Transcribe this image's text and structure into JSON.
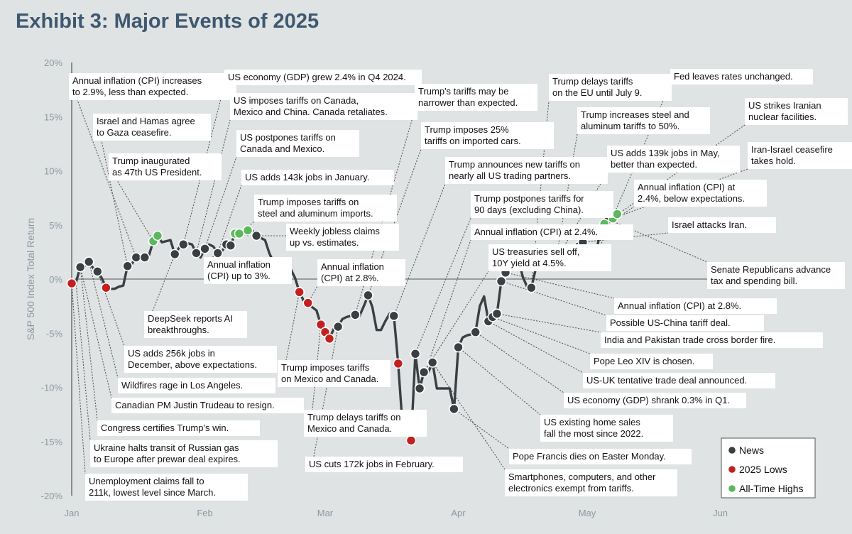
{
  "title": "Exhibit 3: Major Events of 2025",
  "colors": {
    "news": "#3a3f44",
    "lows": "#c42020",
    "highs": "#5cb85c",
    "line": "#3a3f44",
    "background": "#dfe3e3"
  },
  "chart_data": {
    "type": "line",
    "ylabel": "S&P 500 Index Total Return",
    "ylim": [
      -20,
      20
    ],
    "yticks": [
      20,
      15,
      10,
      5,
      0,
      -5,
      -10,
      -15,
      -20
    ],
    "ytick_labels": [
      "20%",
      "15%",
      "10%",
      "5%",
      "0%",
      "-5%",
      "-10%",
      "-15%",
      "-20%"
    ],
    "xlim": [
      0,
      180
    ],
    "xticks": [
      {
        "label": "Jan",
        "x": 0
      },
      {
        "label": "Feb",
        "x": 31
      },
      {
        "label": "Mar",
        "x": 59
      },
      {
        "label": "Apr",
        "x": 90
      },
      {
        "label": "May",
        "x": 120
      },
      {
        "label": "Jun",
        "x": 151
      }
    ],
    "series": [
      {
        "values": [
          [
            0,
            -0.4
          ],
          [
            1,
            -0.3
          ],
          [
            2,
            1.1
          ],
          [
            3,
            1.2
          ],
          [
            4,
            1.6
          ],
          [
            5,
            1.0
          ],
          [
            6,
            0.7
          ],
          [
            7,
            0.1
          ],
          [
            8,
            -0.8
          ],
          [
            9,
            -0.9
          ],
          [
            10,
            -0.9
          ],
          [
            11,
            -0.7
          ],
          [
            12,
            -0.6
          ],
          [
            13,
            1.2
          ],
          [
            14,
            1.4
          ],
          [
            15,
            2.0
          ],
          [
            16,
            2.1
          ],
          [
            17,
            2.0
          ],
          [
            18,
            2.2
          ],
          [
            19,
            3.5
          ],
          [
            20,
            4.0
          ],
          [
            21,
            3.4
          ],
          [
            22,
            3.5
          ],
          [
            23,
            3.6
          ],
          [
            24,
            2.3
          ],
          [
            25,
            2.9
          ],
          [
            26,
            3.2
          ],
          [
            27,
            3.3
          ],
          [
            28,
            3.2
          ],
          [
            29,
            2.4
          ],
          [
            30,
            2.0
          ],
          [
            31,
            2.8
          ],
          [
            32,
            3.2
          ],
          [
            33,
            3.0
          ],
          [
            34,
            2.4
          ],
          [
            35,
            2.6
          ],
          [
            36,
            3.2
          ],
          [
            37,
            3.1
          ],
          [
            38,
            4.2
          ],
          [
            39,
            4.2
          ],
          [
            40,
            4.3
          ],
          [
            41,
            4.1
          ],
          [
            42,
            4.5
          ],
          [
            43,
            4.0
          ],
          [
            44,
            3.8
          ],
          [
            45,
            3.6
          ],
          [
            46,
            2.4
          ],
          [
            47,
            1.5
          ],
          [
            48,
            1.5
          ],
          [
            49,
            0.6
          ],
          [
            50,
            1.5
          ],
          [
            51,
            0.9
          ],
          [
            52,
            0.1
          ],
          [
            53,
            -1.2
          ],
          [
            54,
            -2.0
          ],
          [
            55,
            -2.2
          ],
          [
            56,
            -2.6
          ],
          [
            57,
            -2.9
          ],
          [
            58,
            -4.2
          ],
          [
            59,
            -4.9
          ],
          [
            60,
            -5.5
          ],
          [
            61,
            -4.6
          ],
          [
            62,
            -4.4
          ],
          [
            63,
            -3.7
          ],
          [
            64,
            -3.5
          ],
          [
            65,
            -3.4
          ],
          [
            66,
            -3.3
          ],
          [
            67,
            -3.4
          ],
          [
            68,
            -2.5
          ],
          [
            69,
            -1.5
          ],
          [
            70,
            -2.6
          ],
          [
            71,
            -4.7
          ],
          [
            72,
            -4.7
          ],
          [
            73,
            -3.9
          ],
          [
            74,
            -3.2
          ],
          [
            75,
            -3.4
          ],
          [
            76,
            -7.8
          ],
          [
            77,
            -13.4
          ],
          [
            78,
            -13.6
          ],
          [
            79,
            -14.9
          ],
          [
            80,
            -6.9
          ],
          [
            81,
            -10.1
          ],
          [
            82,
            -8.6
          ],
          [
            83,
            -8.6
          ],
          [
            84,
            -7.7
          ],
          [
            85,
            -10.1
          ],
          [
            86,
            -10.1
          ],
          [
            87,
            -10.1
          ],
          [
            88,
            -10.1
          ],
          [
            89,
            -12.0
          ],
          [
            90,
            -6.3
          ],
          [
            91,
            -5.4
          ],
          [
            92,
            -5.2
          ],
          [
            93,
            -5.1
          ],
          [
            94,
            -4.9
          ],
          [
            95,
            -2.5
          ],
          [
            96,
            -1.6
          ],
          [
            97,
            -3.9
          ],
          [
            98,
            -3.5
          ],
          [
            99,
            -3.2
          ],
          [
            100,
            -0.2
          ],
          [
            101,
            0.6
          ],
          [
            102,
            1.8
          ],
          [
            103,
            1.8
          ],
          [
            104,
            1.8
          ],
          [
            105,
            0.2
          ],
          [
            106,
            -0.7
          ],
          [
            107,
            -0.8
          ],
          [
            108,
            0.9
          ],
          [
            109,
            1.0
          ],
          [
            110,
            1.0
          ],
          [
            111,
            1.0
          ],
          [
            112,
            1.7
          ],
          [
            113,
            2.4
          ],
          [
            114,
            2.6
          ],
          [
            115,
            2.6
          ],
          [
            116,
            2.7
          ],
          [
            117,
            2.9
          ],
          [
            118,
            3.0
          ],
          [
            119,
            3.4
          ],
          [
            120,
            2.3
          ],
          [
            121,
            2.5
          ],
          [
            122,
            2.1
          ],
          [
            123,
            4.4
          ],
          [
            124,
            5.1
          ],
          [
            125,
            5.5
          ],
          [
            126,
            5.6
          ],
          [
            127,
            6.0
          ]
        ]
      }
    ],
    "markers": {
      "news": [
        [
          2,
          1.1
        ],
        [
          4,
          1.6
        ],
        [
          6,
          0.7
        ],
        [
          13,
          1.2
        ],
        [
          15,
          2.0
        ],
        [
          17,
          2.0
        ],
        [
          24,
          2.3
        ],
        [
          26,
          3.2
        ],
        [
          29,
          2.4
        ],
        [
          31,
          2.8
        ],
        [
          34,
          2.4
        ],
        [
          36,
          3.2
        ],
        [
          37,
          3.1
        ],
        [
          43,
          4.0
        ],
        [
          50,
          1.5
        ],
        [
          62,
          -4.4
        ],
        [
          66,
          -3.3
        ],
        [
          69,
          -1.5
        ],
        [
          75,
          -3.4
        ],
        [
          80,
          -6.9
        ],
        [
          81,
          -10.1
        ],
        [
          82,
          -8.6
        ],
        [
          84,
          -7.7
        ],
        [
          89,
          -12.0
        ],
        [
          90,
          -6.3
        ],
        [
          94,
          -4.9
        ],
        [
          97,
          -3.9
        ],
        [
          98,
          -3.5
        ],
        [
          99,
          -3.2
        ],
        [
          100,
          -0.2
        ],
        [
          101,
          0.6
        ],
        [
          107,
          -0.8
        ],
        [
          113,
          2.4
        ],
        [
          114,
          2.6
        ],
        [
          116,
          2.7
        ],
        [
          118,
          3.0
        ],
        [
          119,
          3.4
        ],
        [
          121,
          2.5
        ],
        [
          122,
          2.1
        ],
        [
          123,
          4.4
        ],
        [
          125,
          5.5
        ]
      ],
      "lows": [
        [
          0,
          -0.4
        ],
        [
          8,
          -0.8
        ],
        [
          53,
          -1.2
        ],
        [
          55,
          -2.2
        ],
        [
          58,
          -4.2
        ],
        [
          59,
          -4.9
        ],
        [
          60,
          -5.5
        ],
        [
          76,
          -7.8
        ],
        [
          77,
          -13.4
        ],
        [
          78,
          -13.6
        ],
        [
          79,
          -14.9
        ]
      ],
      "highs": [
        [
          19,
          3.5
        ],
        [
          20,
          4.0
        ],
        [
          38,
          4.2
        ],
        [
          39,
          4.2
        ],
        [
          41,
          4.5
        ],
        [
          124,
          5.1
        ],
        [
          126,
          5.6
        ],
        [
          127,
          6.0
        ]
      ]
    },
    "annotations": [
      {
        "lines": [
          "Annual inflation (CPI) increases",
          "to 2.9%, less than expected."
        ],
        "x": 15,
        "y": 2.0
      },
      {
        "lines": [
          "Israel and Hamas agree",
          "to Gaza ceasefire."
        ],
        "x": 13,
        "y": 1.2
      },
      {
        "lines": [
          "Trump inaugurated",
          "as 47th US President."
        ],
        "x": 19,
        "y": 3.5
      },
      {
        "lines": [
          "US economy (GDP) grew 2.4% in Q4 2024."
        ],
        "x": 26,
        "y": 3.2
      },
      {
        "lines": [
          "US imposes tariffs on Canada,",
          "Mexico and China. Canada retaliates."
        ],
        "x": 29,
        "y": 2.4
      },
      {
        "lines": [
          "US postpones tariffs on",
          "Canada and Mexico."
        ],
        "x": 31,
        "y": 2.8
      },
      {
        "lines": [
          "US adds 143k jobs in January."
        ],
        "x": 34,
        "y": 2.4
      },
      {
        "lines": [
          "Trump imposes tariffs on",
          "steel and aluminum imports."
        ],
        "x": 36,
        "y": 3.2
      },
      {
        "lines": [
          "Weekly jobless claims",
          "up vs. estimates."
        ],
        "x": 43,
        "y": 4.0
      },
      {
        "lines": [
          "Annual inflation",
          "(CPI) up to 3%."
        ],
        "x": 37,
        "y": 3.1
      },
      {
        "lines": [
          "DeepSeek reports AI",
          "breakthroughs."
        ],
        "x": 24,
        "y": 2.3
      },
      {
        "lines": [
          "US adds 256k jobs in",
          "December, above expectations."
        ],
        "x": 6,
        "y": 0.7
      },
      {
        "lines": [
          "Wildfires rage in Los Angeles."
        ],
        "x": 4,
        "y": 1.6
      },
      {
        "lines": [
          "Canadian PM Justin Trudeau to resign."
        ],
        "x": 2,
        "y": 1.1
      },
      {
        "lines": [
          "Congress certifies Trump's win."
        ],
        "x": 2,
        "y": 1.1
      },
      {
        "lines": [
          "Ukraine halts transit of Russian gas",
          "to Europe after prewar deal expires."
        ],
        "x": 1,
        "y": -0.3
      },
      {
        "lines": [
          "Unemployment claims fall to",
          "211k, lowest level since March."
        ],
        "x": 0,
        "y": -0.4
      },
      {
        "lines": [
          "Annual inflation",
          "(CPI) at 2.8%."
        ],
        "x": 55,
        "y": -2.2
      },
      {
        "lines": [
          "Trump imposes tariffs",
          "on Mexico and Canada."
        ],
        "x": 53,
        "y": -1.2
      },
      {
        "lines": [
          "Trump delays tariffs on",
          "Mexico and Canada."
        ],
        "x": 58,
        "y": -4.2
      },
      {
        "lines": [
          "US cuts 172k jobs in February."
        ],
        "x": 62,
        "y": -4.4
      },
      {
        "lines": [
          "Trump's tariffs may be",
          "narrower than expected."
        ],
        "x": 66,
        "y": -3.3
      },
      {
        "lines": [
          "Trump imposes 25%",
          "tariffs on imported cars."
        ],
        "x": 69,
        "y": -1.5
      },
      {
        "lines": [
          "Trump announces new tariffs on",
          "nearly all US trading partners."
        ],
        "x": 75,
        "y": -3.4
      },
      {
        "lines": [
          "Trump postpones tariffs for",
          "90 days (excluding China)."
        ],
        "x": 80,
        "y": -6.9
      },
      {
        "lines": [
          "Annual inflation (CPI) at 2.4%."
        ],
        "x": 81,
        "y": -10.1
      },
      {
        "lines": [
          "US treasuries sell off,",
          "10Y yield at 4.5%."
        ],
        "x": 82,
        "y": -8.6
      },
      {
        "lines": [
          "Smartphones, computers, and other",
          "electronics exempt from tariffs."
        ],
        "x": 84,
        "y": -7.7
      },
      {
        "lines": [
          "Pope Francis dies on Easter Monday."
        ],
        "x": 89,
        "y": -12.0
      },
      {
        "lines": [
          "US existing home sales",
          "fall the most since 2022."
        ],
        "x": 90,
        "y": -6.3
      },
      {
        "lines": [
          "US economy (GDP) shrank 0.3% in Q1."
        ],
        "x": 94,
        "y": -4.9
      },
      {
        "lines": [
          "US-UK tentative trade deal announced."
        ],
        "x": 97,
        "y": -3.9
      },
      {
        "lines": [
          "Pope Leo XIV is chosen."
        ],
        "x": 98,
        "y": -3.5
      },
      {
        "lines": [
          "India and Pakistan trade cross border fire."
        ],
        "x": 99,
        "y": -3.2
      },
      {
        "lines": [
          "Possible US-China tariff deal."
        ],
        "x": 100,
        "y": -0.2
      },
      {
        "lines": [
          "Annual inflation (CPI) at 2.8%."
        ],
        "x": 101,
        "y": 0.6
      },
      {
        "lines": [
          "Trump delays tariffs",
          "on the EU until July 9."
        ],
        "x": 107,
        "y": -0.8
      },
      {
        "lines": [
          "Trump increases steel and",
          "aluminum tariffs to 50%."
        ],
        "x": 113,
        "y": 2.4
      },
      {
        "lines": [
          "US adds 139k jobs in May,",
          "better than expected."
        ],
        "x": 114,
        "y": 2.6
      },
      {
        "lines": [
          "Annual inflation (CPI) at",
          "2.4%, below expectations."
        ],
        "x": 116,
        "y": 2.7
      },
      {
        "lines": [
          "Israel attacks Iran."
        ],
        "x": 119,
        "y": 3.4
      },
      {
        "lines": [
          "Fed leaves rates unchanged."
        ],
        "x": 122,
        "y": 2.1
      },
      {
        "lines": [
          "US strikes Iranian",
          "nuclear facilities."
        ],
        "x": 124,
        "y": 5.1
      },
      {
        "lines": [
          "Iran-Israel ceasefire",
          "takes hold."
        ],
        "x": 126,
        "y": 5.6
      },
      {
        "lines": [
          "Senate Republicans advance",
          "tax and spending bill."
        ],
        "x": 125,
        "y": 5.5
      }
    ],
    "legend": {
      "placement": "bottom-right",
      "entries": [
        {
          "label": "News",
          "color": "#3a3f44"
        },
        {
          "label": "2025 Lows",
          "color": "#c42020"
        },
        {
          "label": "All-Time Highs",
          "color": "#5cb85c"
        }
      ]
    }
  }
}
